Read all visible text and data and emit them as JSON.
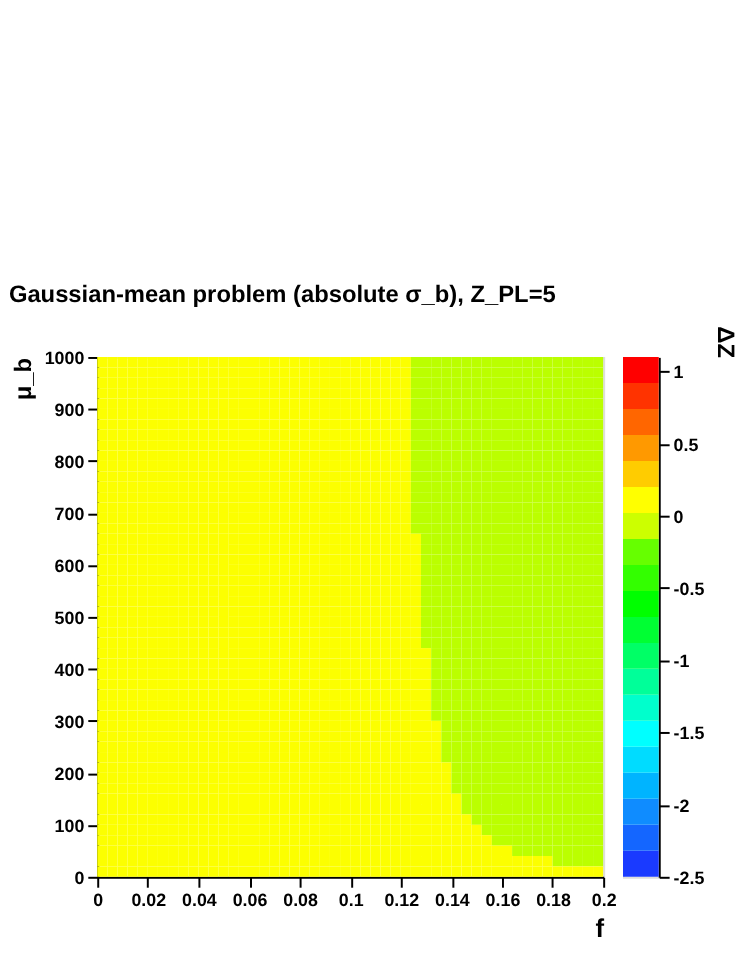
{
  "chart_data": {
    "type": "heatmap",
    "title": "Gaussian-mean problem (absolute σ_b), Z_PL=5",
    "xlabel": "f",
    "ylabel": "μ_b",
    "clabel": "ΔZ",
    "x": [
      0.002,
      0.006,
      0.01,
      0.014,
      0.018,
      0.022,
      0.026,
      0.03,
      0.034,
      0.038,
      0.042,
      0.046,
      0.05,
      0.054,
      0.058,
      0.062,
      0.066,
      0.07,
      0.074,
      0.078,
      0.082,
      0.086,
      0.09,
      0.094,
      0.098,
      0.102,
      0.106,
      0.11,
      0.114,
      0.118,
      0.122,
      0.126,
      0.13,
      0.134,
      0.138,
      0.142,
      0.146,
      0.15,
      0.154,
      0.158,
      0.162,
      0.166,
      0.17,
      0.174,
      0.178,
      0.182,
      0.186,
      0.19,
      0.194,
      0.198
    ],
    "y": [
      990,
      970,
      950,
      930,
      910,
      890,
      870,
      850,
      830,
      810,
      790,
      770,
      750,
      730,
      710,
      690,
      670,
      650,
      630,
      610,
      590,
      570,
      550,
      530,
      510,
      490,
      470,
      450,
      430,
      410,
      390,
      370,
      350,
      330,
      310,
      290,
      270,
      250,
      230,
      210,
      190,
      170,
      150,
      130,
      110,
      90,
      70,
      50,
      30,
      10
    ],
    "xlim": [
      0,
      0.2
    ],
    "xticks": [
      0,
      0.02,
      0.04,
      0.06,
      0.08,
      0.1,
      0.12,
      0.14,
      0.16,
      0.18,
      0.2
    ],
    "ylim": [
      0,
      1000
    ],
    "yticks": [
      0,
      100,
      200,
      300,
      400,
      500,
      600,
      700,
      800,
      900,
      1000
    ],
    "clim": [
      -2.5,
      1.1
    ],
    "cticks": [
      -2.5,
      -2,
      -1.5,
      -1,
      -0.5,
      0,
      0.5,
      1
    ],
    "colors": [
      "#1a3aff",
      "#1466ff",
      "#0f8cff",
      "#00b4ff",
      "#00dcff",
      "#00ffff",
      "#00ffcc",
      "#00ff99",
      "#00ff66",
      "#00ff33",
      "#00ff00",
      "#33ff00",
      "#66ff00",
      "#ccff00",
      "#ffff00",
      "#ffcc00",
      "#ff9900",
      "#ff6600",
      "#ff3300",
      "#ff0000"
    ],
    "grid": false,
    "cells": [
      [
        0.1,
        0.1,
        0.1,
        0.1,
        0.1,
        0.1,
        0.1,
        0.1,
        0.1,
        0.1,
        0.1,
        0.1,
        0.1,
        0.1,
        0.1,
        0.1,
        0.1,
        0.1,
        0.1,
        0.1,
        0.1,
        0.1,
        0.1,
        0.1,
        0.1,
        0.1,
        0.1,
        0.1,
        0.1,
        0.1,
        0.1,
        -0.1,
        -0.1,
        -0.1,
        -0.1,
        -0.1,
        -0.1,
        -0.1,
        -0.1,
        -0.1,
        -0.1,
        -0.1,
        -0.1,
        -0.1,
        -0.1,
        -0.1,
        -0.1,
        -0.1,
        -0.1,
        -0.1
      ],
      [
        0.1,
        0.1,
        0.1,
        0.1,
        0.1,
        0.1,
        0.1,
        0.1,
        0.1,
        0.1,
        0.1,
        0.1,
        0.1,
        0.1,
        0.1,
        0.1,
        0.1,
        0.1,
        0.1,
        0.1,
        0.1,
        0.1,
        0.1,
        0.1,
        0.1,
        0.1,
        0.1,
        0.1,
        0.1,
        0.1,
        0.1,
        -0.1,
        -0.1,
        -0.1,
        -0.1,
        -0.1,
        -0.1,
        -0.1,
        -0.1,
        -0.1,
        -0.1,
        -0.1,
        -0.1,
        -0.1,
        -0.1,
        -0.1,
        -0.1,
        -0.1,
        -0.1,
        -0.1
      ],
      [
        0.1,
        0.1,
        0.1,
        0.1,
        0.1,
        0.1,
        0.1,
        0.1,
        0.1,
        0.1,
        0.1,
        0.1,
        0.1,
        0.1,
        0.1,
        0.1,
        0.1,
        0.1,
        0.1,
        0.1,
        0.1,
        0.1,
        0.1,
        0.1,
        0.1,
        0.1,
        0.1,
        0.1,
        0.1,
        0.1,
        0.1,
        -0.1,
        -0.1,
        -0.1,
        -0.1,
        -0.1,
        -0.1,
        -0.1,
        -0.1,
        -0.1,
        -0.1,
        -0.1,
        -0.1,
        -0.1,
        -0.1,
        -0.1,
        -0.1,
        -0.1,
        -0.1,
        -0.1
      ],
      [
        0.1,
        0.1,
        0.1,
        0.1,
        0.1,
        0.1,
        0.1,
        0.1,
        0.1,
        0.1,
        0.1,
        0.1,
        0.1,
        0.1,
        0.1,
        0.1,
        0.1,
        0.1,
        0.1,
        0.1,
        0.1,
        0.1,
        0.1,
        0.1,
        0.1,
        0.1,
        0.1,
        0.1,
        0.1,
        0.1,
        0.1,
        -0.1,
        -0.1,
        -0.1,
        -0.1,
        -0.1,
        -0.1,
        -0.1,
        -0.1,
        -0.1,
        -0.1,
        -0.1,
        -0.1,
        -0.1,
        -0.1,
        -0.1,
        -0.1,
        -0.1,
        -0.1,
        -0.1
      ],
      [
        0.1,
        0.1,
        0.1,
        0.1,
        0.1,
        0.1,
        0.1,
        0.1,
        0.1,
        0.1,
        0.1,
        0.1,
        0.1,
        0.1,
        0.1,
        0.1,
        0.1,
        0.1,
        0.1,
        0.1,
        0.1,
        0.1,
        0.1,
        0.1,
        0.1,
        0.1,
        0.1,
        0.1,
        0.1,
        0.1,
        0.1,
        -0.1,
        -0.1,
        -0.1,
        -0.1,
        -0.1,
        -0.1,
        -0.1,
        -0.1,
        -0.1,
        -0.1,
        -0.1,
        -0.1,
        -0.1,
        -0.1,
        -0.1,
        -0.1,
        -0.1,
        -0.1,
        -0.1
      ],
      [
        0.1,
        0.1,
        0.1,
        0.1,
        0.1,
        0.1,
        0.1,
        0.1,
        0.1,
        0.1,
        0.1,
        0.1,
        0.1,
        0.1,
        0.1,
        0.1,
        0.1,
        0.1,
        0.1,
        0.1,
        0.1,
        0.1,
        0.1,
        0.1,
        0.1,
        0.1,
        0.1,
        0.1,
        0.1,
        0.1,
        0.1,
        -0.1,
        -0.1,
        -0.1,
        -0.1,
        -0.1,
        -0.1,
        -0.1,
        -0.1,
        -0.1,
        -0.1,
        -0.1,
        -0.1,
        -0.1,
        -0.1,
        -0.1,
        -0.1,
        -0.1,
        -0.1,
        -0.1
      ],
      [
        0.1,
        0.1,
        0.1,
        0.1,
        0.1,
        0.1,
        0.1,
        0.1,
        0.1,
        0.1,
        0.1,
        0.1,
        0.1,
        0.1,
        0.1,
        0.1,
        0.1,
        0.1,
        0.1,
        0.1,
        0.1,
        0.1,
        0.1,
        0.1,
        0.1,
        0.1,
        0.1,
        0.1,
        0.1,
        0.1,
        0.1,
        -0.1,
        -0.1,
        -0.1,
        -0.1,
        -0.1,
        -0.1,
        -0.1,
        -0.1,
        -0.1,
        -0.1,
        -0.1,
        -0.1,
        -0.1,
        -0.1,
        -0.1,
        -0.1,
        -0.1,
        -0.1,
        -0.1
      ],
      [
        0.1,
        0.1,
        0.1,
        0.1,
        0.1,
        0.1,
        0.1,
        0.1,
        0.1,
        0.1,
        0.1,
        0.1,
        0.1,
        0.1,
        0.1,
        0.1,
        0.1,
        0.1,
        0.1,
        0.1,
        0.1,
        0.1,
        0.1,
        0.1,
        0.1,
        0.1,
        0.1,
        0.1,
        0.1,
        0.1,
        0.1,
        -0.1,
        -0.1,
        -0.1,
        -0.1,
        -0.1,
        -0.1,
        -0.1,
        -0.1,
        -0.1,
        -0.1,
        -0.1,
        -0.1,
        -0.1,
        -0.1,
        -0.1,
        -0.1,
        -0.1,
        -0.1,
        -0.1
      ],
      [
        0.1,
        0.1,
        0.1,
        0.1,
        0.1,
        0.1,
        0.1,
        0.1,
        0.1,
        0.1,
        0.1,
        0.1,
        0.1,
        0.1,
        0.1,
        0.1,
        0.1,
        0.1,
        0.1,
        0.1,
        0.1,
        0.1,
        0.1,
        0.1,
        0.1,
        0.1,
        0.1,
        0.1,
        0.1,
        0.1,
        0.1,
        -0.1,
        -0.1,
        -0.1,
        -0.1,
        -0.1,
        -0.1,
        -0.1,
        -0.1,
        -0.1,
        -0.1,
        -0.1,
        -0.1,
        -0.1,
        -0.1,
        -0.1,
        -0.1,
        -0.1,
        -0.1,
        -0.1
      ],
      [
        0.1,
        0.1,
        0.1,
        0.1,
        0.1,
        0.1,
        0.1,
        0.1,
        0.1,
        0.1,
        0.1,
        0.1,
        0.1,
        0.1,
        0.1,
        0.1,
        0.1,
        0.1,
        0.1,
        0.1,
        0.1,
        0.1,
        0.1,
        0.1,
        0.1,
        0.1,
        0.1,
        0.1,
        0.1,
        0.1,
        0.1,
        -0.1,
        -0.1,
        -0.1,
        -0.1,
        -0.1,
        -0.1,
        -0.1,
        -0.1,
        -0.1,
        -0.1,
        -0.1,
        -0.1,
        -0.1,
        -0.1,
        -0.1,
        -0.1,
        -0.1,
        -0.1,
        -0.1
      ],
      [
        0.1,
        0.1,
        0.1,
        0.1,
        0.1,
        0.1,
        0.1,
        0.1,
        0.1,
        0.1,
        0.1,
        0.1,
        0.1,
        0.1,
        0.1,
        0.1,
        0.1,
        0.1,
        0.1,
        0.1,
        0.1,
        0.1,
        0.1,
        0.1,
        0.1,
        0.1,
        0.1,
        0.1,
        0.1,
        0.1,
        0.1,
        -0.1,
        -0.1,
        -0.1,
        -0.1,
        -0.1,
        -0.1,
        -0.1,
        -0.1,
        -0.1,
        -0.1,
        -0.1,
        -0.1,
        -0.1,
        -0.1,
        -0.1,
        -0.1,
        -0.1,
        -0.1,
        -0.1
      ],
      [
        0.1,
        0.1,
        0.1,
        0.1,
        0.1,
        0.1,
        0.1,
        0.1,
        0.1,
        0.1,
        0.1,
        0.1,
        0.1,
        0.1,
        0.1,
        0.1,
        0.1,
        0.1,
        0.1,
        0.1,
        0.1,
        0.1,
        0.1,
        0.1,
        0.1,
        0.1,
        0.1,
        0.1,
        0.1,
        0.1,
        0.1,
        -0.1,
        -0.1,
        -0.1,
        -0.1,
        -0.1,
        -0.1,
        -0.1,
        -0.1,
        -0.1,
        -0.1,
        -0.1,
        -0.1,
        -0.1,
        -0.1,
        -0.1,
        -0.1,
        -0.1,
        -0.1,
        -0.1
      ],
      [
        0.1,
        0.1,
        0.1,
        0.1,
        0.1,
        0.1,
        0.1,
        0.1,
        0.1,
        0.1,
        0.1,
        0.1,
        0.1,
        0.1,
        0.1,
        0.1,
        0.1,
        0.1,
        0.1,
        0.1,
        0.1,
        0.1,
        0.1,
        0.1,
        0.1,
        0.1,
        0.1,
        0.1,
        0.1,
        0.1,
        0.1,
        -0.1,
        -0.1,
        -0.1,
        -0.1,
        -0.1,
        -0.1,
        -0.1,
        -0.1,
        -0.1,
        -0.1,
        -0.1,
        -0.1,
        -0.1,
        -0.1,
        -0.1,
        -0.1,
        -0.1,
        -0.1,
        -0.1
      ],
      [
        0.1,
        0.1,
        0.1,
        0.1,
        0.1,
        0.1,
        0.1,
        0.1,
        0.1,
        0.1,
        0.1,
        0.1,
        0.1,
        0.1,
        0.1,
        0.1,
        0.1,
        0.1,
        0.1,
        0.1,
        0.1,
        0.1,
        0.1,
        0.1,
        0.1,
        0.1,
        0.1,
        0.1,
        0.1,
        0.1,
        0.1,
        -0.1,
        -0.1,
        -0.1,
        -0.1,
        -0.1,
        -0.1,
        -0.1,
        -0.1,
        -0.1,
        -0.1,
        -0.1,
        -0.1,
        -0.1,
        -0.1,
        -0.1,
        -0.1,
        -0.1,
        -0.1,
        -0.1
      ],
      [
        0.1,
        0.1,
        0.1,
        0.1,
        0.1,
        0.1,
        0.1,
        0.1,
        0.1,
        0.1,
        0.1,
        0.1,
        0.1,
        0.1,
        0.1,
        0.1,
        0.1,
        0.1,
        0.1,
        0.1,
        0.1,
        0.1,
        0.1,
        0.1,
        0.1,
        0.1,
        0.1,
        0.1,
        0.1,
        0.1,
        0.1,
        -0.1,
        -0.1,
        -0.1,
        -0.1,
        -0.1,
        -0.1,
        -0.1,
        -0.1,
        -0.1,
        -0.1,
        -0.1,
        -0.1,
        -0.1,
        -0.1,
        -0.1,
        -0.1,
        -0.1,
        -0.1,
        -0.1
      ],
      [
        0.1,
        0.1,
        0.1,
        0.1,
        0.1,
        0.1,
        0.1,
        0.1,
        0.1,
        0.1,
        0.1,
        0.1,
        0.1,
        0.1,
        0.1,
        0.1,
        0.1,
        0.1,
        0.1,
        0.1,
        0.1,
        0.1,
        0.1,
        0.1,
        0.1,
        0.1,
        0.1,
        0.1,
        0.1,
        0.1,
        0.1,
        -0.1,
        -0.1,
        -0.1,
        -0.1,
        -0.1,
        -0.1,
        -0.1,
        -0.1,
        -0.1,
        -0.1,
        -0.1,
        -0.1,
        -0.1,
        -0.1,
        -0.1,
        -0.1,
        -0.1,
        -0.1,
        -0.1
      ],
      [
        0.1,
        0.1,
        0.1,
        0.1,
        0.1,
        0.1,
        0.1,
        0.1,
        0.1,
        0.1,
        0.1,
        0.1,
        0.1,
        0.1,
        0.1,
        0.1,
        0.1,
        0.1,
        0.1,
        0.1,
        0.1,
        0.1,
        0.1,
        0.1,
        0.1,
        0.1,
        0.1,
        0.1,
        0.1,
        0.1,
        0.1,
        -0.1,
        -0.1,
        -0.1,
        -0.1,
        -0.1,
        -0.1,
        -0.1,
        -0.1,
        -0.1,
        -0.1,
        -0.1,
        -0.1,
        -0.1,
        -0.1,
        -0.1,
        -0.1,
        -0.1,
        -0.1,
        -0.1
      ],
      [
        0.1,
        0.1,
        0.1,
        0.1,
        0.1,
        0.1,
        0.1,
        0.1,
        0.1,
        0.1,
        0.1,
        0.1,
        0.1,
        0.1,
        0.1,
        0.1,
        0.1,
        0.1,
        0.1,
        0.1,
        0.1,
        0.1,
        0.1,
        0.1,
        0.1,
        0.1,
        0.1,
        0.1,
        0.1,
        0.1,
        0.1,
        0.1,
        -0.1,
        -0.1,
        -0.1,
        -0.1,
        -0.1,
        -0.1,
        -0.1,
        -0.1,
        -0.1,
        -0.1,
        -0.1,
        -0.1,
        -0.1,
        -0.1,
        -0.1,
        -0.1,
        -0.1,
        -0.1
      ],
      [
        0.1,
        0.1,
        0.1,
        0.1,
        0.1,
        0.1,
        0.1,
        0.1,
        0.1,
        0.1,
        0.1,
        0.1,
        0.1,
        0.1,
        0.1,
        0.1,
        0.1,
        0.1,
        0.1,
        0.1,
        0.1,
        0.1,
        0.1,
        0.1,
        0.1,
        0.1,
        0.1,
        0.1,
        0.1,
        0.1,
        0.1,
        0.1,
        -0.1,
        -0.1,
        -0.1,
        -0.1,
        -0.1,
        -0.1,
        -0.1,
        -0.1,
        -0.1,
        -0.1,
        -0.1,
        -0.1,
        -0.1,
        -0.1,
        -0.1,
        -0.1,
        -0.1,
        -0.1
      ],
      [
        0.1,
        0.1,
        0.1,
        0.1,
        0.1,
        0.1,
        0.1,
        0.1,
        0.1,
        0.1,
        0.1,
        0.1,
        0.1,
        0.1,
        0.1,
        0.1,
        0.1,
        0.1,
        0.1,
        0.1,
        0.1,
        0.1,
        0.1,
        0.1,
        0.1,
        0.1,
        0.1,
        0.1,
        0.1,
        0.1,
        0.1,
        0.1,
        -0.1,
        -0.1,
        -0.1,
        -0.1,
        -0.1,
        -0.1,
        -0.1,
        -0.1,
        -0.1,
        -0.1,
        -0.1,
        -0.1,
        -0.1,
        -0.1,
        -0.1,
        -0.1,
        -0.1,
        -0.1
      ],
      [
        0.1,
        0.1,
        0.1,
        0.1,
        0.1,
        0.1,
        0.1,
        0.1,
        0.1,
        0.1,
        0.1,
        0.1,
        0.1,
        0.1,
        0.1,
        0.1,
        0.1,
        0.1,
        0.1,
        0.1,
        0.1,
        0.1,
        0.1,
        0.1,
        0.1,
        0.1,
        0.1,
        0.1,
        0.1,
        0.1,
        0.1,
        0.1,
        -0.1,
        -0.1,
        -0.1,
        -0.1,
        -0.1,
        -0.1,
        -0.1,
        -0.1,
        -0.1,
        -0.1,
        -0.1,
        -0.1,
        -0.1,
        -0.1,
        -0.1,
        -0.1,
        -0.1,
        -0.1
      ],
      [
        0.1,
        0.1,
        0.1,
        0.1,
        0.1,
        0.1,
        0.1,
        0.1,
        0.1,
        0.1,
        0.1,
        0.1,
        0.1,
        0.1,
        0.1,
        0.1,
        0.1,
        0.1,
        0.1,
        0.1,
        0.1,
        0.1,
        0.1,
        0.1,
        0.1,
        0.1,
        0.1,
        0.1,
        0.1,
        0.1,
        0.1,
        0.1,
        -0.1,
        -0.1,
        -0.1,
        -0.1,
        -0.1,
        -0.1,
        -0.1,
        -0.1,
        -0.1,
        -0.1,
        -0.1,
        -0.1,
        -0.1,
        -0.1,
        -0.1,
        -0.1,
        -0.1,
        -0.1
      ],
      [
        0.1,
        0.1,
        0.1,
        0.1,
        0.1,
        0.1,
        0.1,
        0.1,
        0.1,
        0.1,
        0.1,
        0.1,
        0.1,
        0.1,
        0.1,
        0.1,
        0.1,
        0.1,
        0.1,
        0.1,
        0.1,
        0.1,
        0.1,
        0.1,
        0.1,
        0.1,
        0.1,
        0.1,
        0.1,
        0.1,
        0.1,
        0.1,
        -0.1,
        -0.1,
        -0.1,
        -0.1,
        -0.1,
        -0.1,
        -0.1,
        -0.1,
        -0.1,
        -0.1,
        -0.1,
        -0.1,
        -0.1,
        -0.1,
        -0.1,
        -0.1,
        -0.1,
        -0.1
      ],
      [
        0.1,
        0.1,
        0.1,
        0.1,
        0.1,
        0.1,
        0.1,
        0.1,
        0.1,
        0.1,
        0.1,
        0.1,
        0.1,
        0.1,
        0.1,
        0.1,
        0.1,
        0.1,
        0.1,
        0.1,
        0.1,
        0.1,
        0.1,
        0.1,
        0.1,
        0.1,
        0.1,
        0.1,
        0.1,
        0.1,
        0.1,
        0.1,
        -0.1,
        -0.1,
        -0.1,
        -0.1,
        -0.1,
        -0.1,
        -0.1,
        -0.1,
        -0.1,
        -0.1,
        -0.1,
        -0.1,
        -0.1,
        -0.1,
        -0.1,
        -0.1,
        -0.1,
        -0.1
      ],
      [
        0.1,
        0.1,
        0.1,
        0.1,
        0.1,
        0.1,
        0.1,
        0.1,
        0.1,
        0.1,
        0.1,
        0.1,
        0.1,
        0.1,
        0.1,
        0.1,
        0.1,
        0.1,
        0.1,
        0.1,
        0.1,
        0.1,
        0.1,
        0.1,
        0.1,
        0.1,
        0.1,
        0.1,
        0.1,
        0.1,
        0.1,
        0.1,
        -0.1,
        -0.1,
        -0.1,
        -0.1,
        -0.1,
        -0.1,
        -0.1,
        -0.1,
        -0.1,
        -0.1,
        -0.1,
        -0.1,
        -0.1,
        -0.1,
        -0.1,
        -0.1,
        -0.1,
        -0.1
      ],
      [
        0.1,
        0.1,
        0.1,
        0.1,
        0.1,
        0.1,
        0.1,
        0.1,
        0.1,
        0.1,
        0.1,
        0.1,
        0.1,
        0.1,
        0.1,
        0.1,
        0.1,
        0.1,
        0.1,
        0.1,
        0.1,
        0.1,
        0.1,
        0.1,
        0.1,
        0.1,
        0.1,
        0.1,
        0.1,
        0.1,
        0.1,
        0.1,
        -0.1,
        -0.1,
        -0.1,
        -0.1,
        -0.1,
        -0.1,
        -0.1,
        -0.1,
        -0.1,
        -0.1,
        -0.1,
        -0.1,
        -0.1,
        -0.1,
        -0.1,
        -0.1,
        -0.1,
        -0.1
      ],
      [
        0.1,
        0.1,
        0.1,
        0.1,
        0.1,
        0.1,
        0.1,
        0.1,
        0.1,
        0.1,
        0.1,
        0.1,
        0.1,
        0.1,
        0.1,
        0.1,
        0.1,
        0.1,
        0.1,
        0.1,
        0.1,
        0.1,
        0.1,
        0.1,
        0.1,
        0.1,
        0.1,
        0.1,
        0.1,
        0.1,
        0.1,
        0.1,
        -0.1,
        -0.1,
        -0.1,
        -0.1,
        -0.1,
        -0.1,
        -0.1,
        -0.1,
        -0.1,
        -0.1,
        -0.1,
        -0.1,
        -0.1,
        -0.1,
        -0.1,
        -0.1,
        -0.1,
        -0.1
      ],
      [
        0.1,
        0.1,
        0.1,
        0.1,
        0.1,
        0.1,
        0.1,
        0.1,
        0.1,
        0.1,
        0.1,
        0.1,
        0.1,
        0.1,
        0.1,
        0.1,
        0.1,
        0.1,
        0.1,
        0.1,
        0.1,
        0.1,
        0.1,
        0.1,
        0.1,
        0.1,
        0.1,
        0.1,
        0.1,
        0.1,
        0.1,
        0.1,
        -0.1,
        -0.1,
        -0.1,
        -0.1,
        -0.1,
        -0.1,
        -0.1,
        -0.1,
        -0.1,
        -0.1,
        -0.1,
        -0.1,
        -0.1,
        -0.1,
        -0.1,
        -0.1,
        -0.1,
        -0.1
      ],
      [
        0.1,
        0.1,
        0.1,
        0.1,
        0.1,
        0.1,
        0.1,
        0.1,
        0.1,
        0.1,
        0.1,
        0.1,
        0.1,
        0.1,
        0.1,
        0.1,
        0.1,
        0.1,
        0.1,
        0.1,
        0.1,
        0.1,
        0.1,
        0.1,
        0.1,
        0.1,
        0.1,
        0.1,
        0.1,
        0.1,
        0.1,
        0.1,
        0.1,
        -0.1,
        -0.1,
        -0.1,
        -0.1,
        -0.1,
        -0.1,
        -0.1,
        -0.1,
        -0.1,
        -0.1,
        -0.1,
        -0.1,
        -0.1,
        -0.1,
        -0.1,
        -0.1,
        -0.1
      ],
      [
        0.1,
        0.1,
        0.1,
        0.1,
        0.1,
        0.1,
        0.1,
        0.1,
        0.1,
        0.1,
        0.1,
        0.1,
        0.1,
        0.1,
        0.1,
        0.1,
        0.1,
        0.1,
        0.1,
        0.1,
        0.1,
        0.1,
        0.1,
        0.1,
        0.1,
        0.1,
        0.1,
        0.1,
        0.1,
        0.1,
        0.1,
        0.1,
        0.1,
        -0.1,
        -0.1,
        -0.1,
        -0.1,
        -0.1,
        -0.1,
        -0.1,
        -0.1,
        -0.1,
        -0.1,
        -0.1,
        -0.1,
        -0.1,
        -0.1,
        -0.1,
        -0.1,
        -0.1
      ],
      [
        0.1,
        0.1,
        0.1,
        0.1,
        0.1,
        0.1,
        0.1,
        0.1,
        0.1,
        0.1,
        0.1,
        0.1,
        0.1,
        0.1,
        0.1,
        0.1,
        0.1,
        0.1,
        0.1,
        0.1,
        0.1,
        0.1,
        0.1,
        0.1,
        0.1,
        0.1,
        0.1,
        0.1,
        0.1,
        0.1,
        0.1,
        0.1,
        0.1,
        -0.1,
        -0.1,
        -0.1,
        -0.1,
        -0.1,
        -0.1,
        -0.1,
        -0.1,
        -0.1,
        -0.1,
        -0.1,
        -0.1,
        -0.1,
        -0.1,
        -0.1,
        -0.1,
        -0.1
      ],
      [
        0.1,
        0.1,
        0.1,
        0.1,
        0.1,
        0.1,
        0.1,
        0.1,
        0.1,
        0.1,
        0.1,
        0.1,
        0.1,
        0.1,
        0.1,
        0.1,
        0.1,
        0.1,
        0.1,
        0.1,
        0.1,
        0.1,
        0.1,
        0.1,
        0.1,
        0.1,
        0.1,
        0.1,
        0.1,
        0.1,
        0.1,
        0.1,
        0.1,
        -0.1,
        -0.1,
        -0.1,
        -0.1,
        -0.1,
        -0.1,
        -0.1,
        -0.1,
        -0.1,
        -0.1,
        -0.1,
        -0.1,
        -0.1,
        -0.1,
        -0.1,
        -0.1,
        -0.1
      ],
      [
        0.1,
        0.1,
        0.1,
        0.1,
        0.1,
        0.1,
        0.1,
        0.1,
        0.1,
        0.1,
        0.1,
        0.1,
        0.1,
        0.1,
        0.1,
        0.1,
        0.1,
        0.1,
        0.1,
        0.1,
        0.1,
        0.1,
        0.1,
        0.1,
        0.1,
        0.1,
        0.1,
        0.1,
        0.1,
        0.1,
        0.1,
        0.1,
        0.1,
        -0.1,
        -0.1,
        -0.1,
        -0.1,
        -0.1,
        -0.1,
        -0.1,
        -0.1,
        -0.1,
        -0.1,
        -0.1,
        -0.1,
        -0.1,
        -0.1,
        -0.1,
        -0.1,
        -0.1
      ],
      [
        0.1,
        0.1,
        0.1,
        0.1,
        0.1,
        0.1,
        0.1,
        0.1,
        0.1,
        0.1,
        0.1,
        0.1,
        0.1,
        0.1,
        0.1,
        0.1,
        0.1,
        0.1,
        0.1,
        0.1,
        0.1,
        0.1,
        0.1,
        0.1,
        0.1,
        0.1,
        0.1,
        0.1,
        0.1,
        0.1,
        0.1,
        0.1,
        0.1,
        -0.1,
        -0.1,
        -0.1,
        -0.1,
        -0.1,
        -0.1,
        -0.1,
        -0.1,
        -0.1,
        -0.1,
        -0.1,
        -0.1,
        -0.1,
        -0.1,
        -0.1,
        -0.1,
        -0.1
      ],
      [
        0.1,
        0.1,
        0.1,
        0.1,
        0.1,
        0.1,
        0.1,
        0.1,
        0.1,
        0.1,
        0.1,
        0.1,
        0.1,
        0.1,
        0.1,
        0.1,
        0.1,
        0.1,
        0.1,
        0.1,
        0.1,
        0.1,
        0.1,
        0.1,
        0.1,
        0.1,
        0.1,
        0.1,
        0.1,
        0.1,
        0.1,
        0.1,
        0.1,
        -0.1,
        -0.1,
        -0.1,
        -0.1,
        -0.1,
        -0.1,
        -0.1,
        -0.1,
        -0.1,
        -0.1,
        -0.1,
        -0.1,
        -0.1,
        -0.1,
        -0.1,
        -0.1,
        -0.1
      ],
      [
        0.1,
        0.1,
        0.1,
        0.1,
        0.1,
        0.1,
        0.1,
        0.1,
        0.1,
        0.1,
        0.1,
        0.1,
        0.1,
        0.1,
        0.1,
        0.1,
        0.1,
        0.1,
        0.1,
        0.1,
        0.1,
        0.1,
        0.1,
        0.1,
        0.1,
        0.1,
        0.1,
        0.1,
        0.1,
        0.1,
        0.1,
        0.1,
        0.1,
        0.1,
        -0.1,
        -0.1,
        -0.1,
        -0.1,
        -0.1,
        -0.1,
        -0.1,
        -0.1,
        -0.1,
        -0.1,
        -0.1,
        -0.1,
        -0.1,
        -0.1,
        -0.1,
        -0.1
      ],
      [
        0.1,
        0.1,
        0.1,
        0.1,
        0.1,
        0.1,
        0.1,
        0.1,
        0.1,
        0.1,
        0.1,
        0.1,
        0.1,
        0.1,
        0.1,
        0.1,
        0.1,
        0.1,
        0.1,
        0.1,
        0.1,
        0.1,
        0.1,
        0.1,
        0.1,
        0.1,
        0.1,
        0.1,
        0.1,
        0.1,
        0.1,
        0.1,
        0.1,
        0.1,
        -0.1,
        -0.1,
        -0.1,
        -0.1,
        -0.1,
        -0.1,
        -0.1,
        -0.1,
        -0.1,
        -0.1,
        -0.1,
        -0.1,
        -0.1,
        -0.1,
        -0.1,
        -0.1
      ],
      [
        0.1,
        0.1,
        0.1,
        0.1,
        0.1,
        0.1,
        0.1,
        0.1,
        0.1,
        0.1,
        0.1,
        0.1,
        0.1,
        0.1,
        0.1,
        0.1,
        0.1,
        0.1,
        0.1,
        0.1,
        0.1,
        0.1,
        0.1,
        0.1,
        0.1,
        0.1,
        0.1,
        0.1,
        0.1,
        0.1,
        0.1,
        0.1,
        0.1,
        0.1,
        -0.1,
        -0.1,
        -0.1,
        -0.1,
        -0.1,
        -0.1,
        -0.1,
        -0.1,
        -0.1,
        -0.1,
        -0.1,
        -0.1,
        -0.1,
        -0.1,
        -0.1,
        -0.1
      ],
      [
        0.1,
        0.1,
        0.1,
        0.1,
        0.1,
        0.1,
        0.1,
        0.1,
        0.1,
        0.1,
        0.1,
        0.1,
        0.1,
        0.1,
        0.1,
        0.1,
        0.1,
        0.1,
        0.1,
        0.1,
        0.1,
        0.1,
        0.1,
        0.1,
        0.1,
        0.1,
        0.1,
        0.1,
        0.1,
        0.1,
        0.1,
        0.1,
        0.1,
        0.1,
        -0.1,
        -0.1,
        -0.1,
        -0.1,
        -0.1,
        -0.1,
        -0.1,
        -0.1,
        -0.1,
        -0.1,
        -0.1,
        -0.1,
        -0.1,
        -0.1,
        -0.1,
        -0.1
      ],
      [
        0.1,
        0.1,
        0.1,
        0.1,
        0.1,
        0.1,
        0.1,
        0.1,
        0.1,
        0.1,
        0.1,
        0.1,
        0.1,
        0.1,
        0.1,
        0.1,
        0.1,
        0.1,
        0.1,
        0.1,
        0.1,
        0.1,
        0.1,
        0.1,
        0.1,
        0.1,
        0.1,
        0.1,
        0.1,
        0.1,
        0.1,
        0.1,
        0.1,
        0.1,
        0.1,
        -0.1,
        -0.1,
        -0.1,
        -0.1,
        -0.1,
        -0.1,
        -0.1,
        -0.1,
        -0.1,
        -0.1,
        -0.1,
        -0.1,
        -0.1,
        -0.1,
        -0.1
      ],
      [
        0.1,
        0.1,
        0.1,
        0.1,
        0.1,
        0.1,
        0.1,
        0.1,
        0.1,
        0.1,
        0.1,
        0.1,
        0.1,
        0.1,
        0.1,
        0.1,
        0.1,
        0.1,
        0.1,
        0.1,
        0.1,
        0.1,
        0.1,
        0.1,
        0.1,
        0.1,
        0.1,
        0.1,
        0.1,
        0.1,
        0.1,
        0.1,
        0.1,
        0.1,
        0.1,
        -0.1,
        -0.1,
        -0.1,
        -0.1,
        -0.1,
        -0.1,
        -0.1,
        -0.1,
        -0.1,
        -0.1,
        -0.1,
        -0.1,
        -0.1,
        -0.1,
        -0.1
      ],
      [
        0.1,
        0.1,
        0.1,
        0.1,
        0.1,
        0.1,
        0.1,
        0.1,
        0.1,
        0.1,
        0.1,
        0.1,
        0.1,
        0.1,
        0.1,
        0.1,
        0.1,
        0.1,
        0.1,
        0.1,
        0.1,
        0.1,
        0.1,
        0.1,
        0.1,
        0.1,
        0.1,
        0.1,
        0.1,
        0.1,
        0.1,
        0.1,
        0.1,
        0.1,
        0.1,
        -0.1,
        -0.1,
        -0.1,
        -0.1,
        -0.1,
        -0.1,
        -0.1,
        -0.1,
        -0.1,
        -0.1,
        -0.1,
        -0.1,
        -0.1,
        -0.1,
        -0.1
      ],
      [
        0.1,
        0.1,
        0.1,
        0.1,
        0.1,
        0.1,
        0.1,
        0.1,
        0.1,
        0.1,
        0.1,
        0.1,
        0.1,
        0.1,
        0.1,
        0.1,
        0.1,
        0.1,
        0.1,
        0.1,
        0.1,
        0.1,
        0.1,
        0.1,
        0.1,
        0.1,
        0.1,
        0.1,
        0.1,
        0.1,
        0.1,
        0.1,
        0.1,
        0.1,
        0.1,
        0.1,
        -0.1,
        -0.1,
        -0.1,
        -0.1,
        -0.1,
        -0.1,
        -0.1,
        -0.1,
        -0.1,
        -0.1,
        -0.1,
        -0.1,
        -0.1,
        -0.1
      ],
      [
        0.1,
        0.1,
        0.1,
        0.1,
        0.1,
        0.1,
        0.1,
        0.1,
        0.1,
        0.1,
        0.1,
        0.1,
        0.1,
        0.1,
        0.1,
        0.1,
        0.1,
        0.1,
        0.1,
        0.1,
        0.1,
        0.1,
        0.1,
        0.1,
        0.1,
        0.1,
        0.1,
        0.1,
        0.1,
        0.1,
        0.1,
        0.1,
        0.1,
        0.1,
        0.1,
        0.1,
        -0.1,
        -0.1,
        -0.1,
        -0.1,
        -0.1,
        -0.1,
        -0.1,
        -0.1,
        -0.1,
        -0.1,
        -0.1,
        -0.1,
        -0.1,
        -0.1
      ],
      [
        0.1,
        0.1,
        0.1,
        0.1,
        0.1,
        0.1,
        0.1,
        0.1,
        0.1,
        0.1,
        0.1,
        0.1,
        0.1,
        0.1,
        0.1,
        0.1,
        0.1,
        0.1,
        0.1,
        0.1,
        0.1,
        0.1,
        0.1,
        0.1,
        0.1,
        0.1,
        0.1,
        0.1,
        0.1,
        0.1,
        0.1,
        0.1,
        0.1,
        0.1,
        0.1,
        0.1,
        0.1,
        -0.1,
        -0.1,
        -0.1,
        -0.1,
        -0.1,
        -0.1,
        -0.1,
        -0.1,
        -0.1,
        -0.1,
        -0.1,
        -0.1,
        -0.1
      ],
      [
        0.1,
        0.1,
        0.1,
        0.1,
        0.1,
        0.1,
        0.1,
        0.1,
        0.1,
        0.1,
        0.1,
        0.1,
        0.1,
        0.1,
        0.1,
        0.1,
        0.1,
        0.1,
        0.1,
        0.1,
        0.1,
        0.1,
        0.1,
        0.1,
        0.1,
        0.1,
        0.1,
        0.1,
        0.1,
        0.1,
        0.1,
        0.1,
        0.1,
        0.1,
        0.1,
        0.1,
        0.1,
        0.1,
        -0.1,
        -0.1,
        -0.1,
        -0.1,
        -0.1,
        -0.1,
        -0.1,
        -0.1,
        -0.1,
        -0.1,
        -0.1,
        -0.1
      ],
      [
        0.1,
        0.1,
        0.1,
        0.1,
        0.1,
        0.1,
        0.1,
        0.1,
        0.1,
        0.1,
        0.1,
        0.1,
        0.1,
        0.1,
        0.1,
        0.1,
        0.1,
        0.1,
        0.1,
        0.1,
        0.1,
        0.1,
        0.1,
        0.1,
        0.1,
        0.1,
        0.1,
        0.1,
        0.1,
        0.1,
        0.1,
        0.1,
        0.1,
        0.1,
        0.1,
        0.1,
        0.1,
        0.1,
        0.1,
        -0.1,
        -0.1,
        -0.1,
        -0.1,
        -0.1,
        -0.1,
        -0.1,
        -0.1,
        -0.1,
        -0.1,
        -0.1
      ],
      [
        0.1,
        0.1,
        0.1,
        0.1,
        0.1,
        0.1,
        0.1,
        0.1,
        0.1,
        0.1,
        0.1,
        0.1,
        0.1,
        0.1,
        0.1,
        0.1,
        0.1,
        0.1,
        0.1,
        0.1,
        0.1,
        0.1,
        0.1,
        0.1,
        0.1,
        0.1,
        0.1,
        0.1,
        0.1,
        0.1,
        0.1,
        0.1,
        0.1,
        0.1,
        0.1,
        0.1,
        0.1,
        0.1,
        0.1,
        0.1,
        0.1,
        -0.1,
        -0.1,
        -0.1,
        -0.1,
        -0.1,
        -0.1,
        -0.1,
        -0.1,
        -0.1
      ],
      [
        0.1,
        0.1,
        0.1,
        0.1,
        0.1,
        0.1,
        0.1,
        0.1,
        0.1,
        0.1,
        0.1,
        0.1,
        0.1,
        0.1,
        0.1,
        0.1,
        0.1,
        0.1,
        0.1,
        0.1,
        0.1,
        0.1,
        0.1,
        0.1,
        0.1,
        0.1,
        0.1,
        0.1,
        0.1,
        0.1,
        0.1,
        0.1,
        0.1,
        0.1,
        0.1,
        0.1,
        0.1,
        0.1,
        0.1,
        0.1,
        0.1,
        0.1,
        0.1,
        0.1,
        0.1,
        -0.1,
        -0.1,
        -0.1,
        -0.1,
        -0.1
      ],
      [
        0.1,
        0.1,
        0.1,
        0.1,
        0.1,
        0.1,
        0.1,
        0.1,
        0.1,
        0.1,
        0.1,
        0.1,
        0.1,
        0.1,
        0.1,
        0.1,
        0.1,
        0.1,
        0.1,
        0.1,
        0.1,
        0.1,
        0.1,
        0.1,
        0.1,
        0.1,
        0.1,
        0.1,
        0.1,
        0.1,
        0.1,
        0.1,
        0.1,
        0.1,
        0.1,
        0.1,
        0.1,
        0.1,
        0.1,
        0.1,
        0.1,
        0.1,
        0.1,
        0.1,
        0.1,
        0.1,
        0.1,
        0.1,
        0.1,
        0.1
      ]
    ]
  }
}
